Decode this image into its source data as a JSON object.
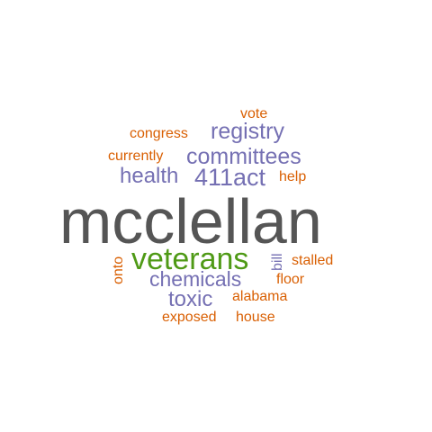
{
  "colors": {
    "orange": "#d95f02",
    "purple": "#7570b3",
    "green": "#4f9a16",
    "gray": "#555555",
    "background": "#ffffff"
  },
  "words": [
    {
      "id": "mcclellan",
      "text": "mcclellan",
      "color": "gray",
      "orientation": "horizontal"
    },
    {
      "id": "veterans",
      "text": "veterans",
      "color": "green",
      "orientation": "horizontal"
    },
    {
      "id": "registry",
      "text": "registry",
      "color": "purple",
      "orientation": "horizontal"
    },
    {
      "id": "committees",
      "text": "committees",
      "color": "purple",
      "orientation": "horizontal"
    },
    {
      "id": "health",
      "text": "health",
      "color": "purple",
      "orientation": "horizontal"
    },
    {
      "id": "411act",
      "text": "411act",
      "color": "purple",
      "orientation": "horizontal"
    },
    {
      "id": "chemicals",
      "text": "chemicals",
      "color": "purple",
      "orientation": "horizontal"
    },
    {
      "id": "toxic",
      "text": "toxic",
      "color": "purple",
      "orientation": "horizontal"
    },
    {
      "id": "vote",
      "text": "vote",
      "color": "orange",
      "orientation": "horizontal"
    },
    {
      "id": "congress",
      "text": "congress",
      "color": "orange",
      "orientation": "horizontal"
    },
    {
      "id": "currently",
      "text": "currently",
      "color": "orange",
      "orientation": "horizontal"
    },
    {
      "id": "help",
      "text": "help",
      "color": "orange",
      "orientation": "horizontal"
    },
    {
      "id": "onto",
      "text": "onto",
      "color": "orange",
      "orientation": "vertical"
    },
    {
      "id": "bill",
      "text": "bill",
      "color": "purple",
      "orientation": "vertical"
    },
    {
      "id": "stalled",
      "text": "stalled",
      "color": "orange",
      "orientation": "horizontal"
    },
    {
      "id": "floor",
      "text": "floor",
      "color": "orange",
      "orientation": "horizontal"
    },
    {
      "id": "alabama",
      "text": "alabama",
      "color": "orange",
      "orientation": "horizontal"
    },
    {
      "id": "exposed",
      "text": "exposed",
      "color": "orange",
      "orientation": "horizontal"
    },
    {
      "id": "house",
      "text": "house",
      "color": "orange",
      "orientation": "horizontal"
    }
  ]
}
